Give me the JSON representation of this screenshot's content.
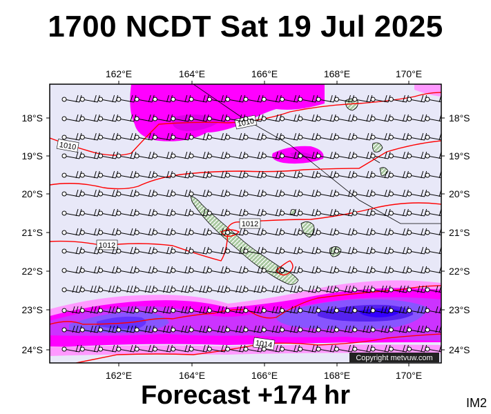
{
  "header": {
    "title": "1700 NCDT Sat 19 Jul 2025"
  },
  "footer": {
    "forecast": "Forecast +174 hr",
    "code": "IM2"
  },
  "map": {
    "lon_ticks": [
      "162°E",
      "164°E",
      "166°E",
      "168°E",
      "170°E"
    ],
    "lat_ticks": [
      "18°S",
      "19°S",
      "20°S",
      "21°S",
      "22°S",
      "23°S",
      "24°S"
    ],
    "isobar_labels": [
      "1010",
      "1010",
      "1012",
      "1012",
      "1014"
    ],
    "copyright": "Copyright metvuw.com",
    "colors": {
      "background": "#e8e8f8",
      "wind_light": "#ff99ff",
      "wind_mid": "#ff00ff",
      "wind_strong": "#cc33ff",
      "wind_stronger": "#8000ff",
      "wind_max": "#3300ff",
      "isobar": "#ff0000",
      "land": "#a8c8a0"
    }
  }
}
